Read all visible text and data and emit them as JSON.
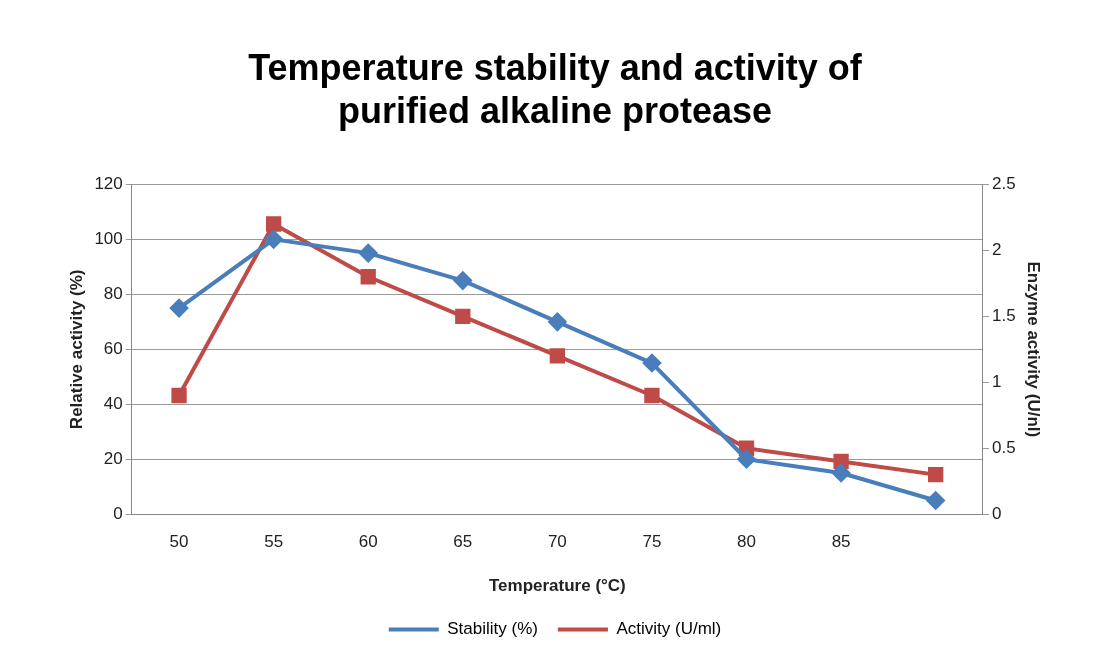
{
  "chart_data": {
    "type": "line",
    "title": [
      "Temperature stability and activity of",
      "purified alkaline protease"
    ],
    "xlabel": "Temperature (°C)",
    "ylabel": "Relative activity (%)",
    "y2label": "Enzyme activity (U/nl)",
    "categories": [
      "50",
      "55",
      "60",
      "65",
      "70",
      "75",
      "80",
      "85",
      null
    ],
    "series": [
      {
        "name": "Stability (%)",
        "color": "#4a7ebb",
        "marker": "diamond",
        "values": [
          75,
          100,
          95,
          85,
          70,
          55,
          20,
          15,
          5
        ]
      },
      {
        "name": "Activity (U/ml)",
        "color": "#be4b48",
        "marker": "square",
        "axis": "y2",
        "values": [
          0.9,
          2.2,
          1.8,
          1.5,
          1.2,
          0.9,
          0.5,
          0.4,
          0.3
        ]
      }
    ],
    "ylim": [
      0,
      120
    ],
    "yticks": [
      0,
      20,
      40,
      60,
      80,
      100,
      120
    ],
    "y2lim": [
      0,
      2.5
    ],
    "y2ticks": [
      0,
      0.5,
      1,
      1.5,
      2,
      2.5
    ],
    "grid": "y",
    "legend": "bottom",
    "line_style": "solid"
  }
}
